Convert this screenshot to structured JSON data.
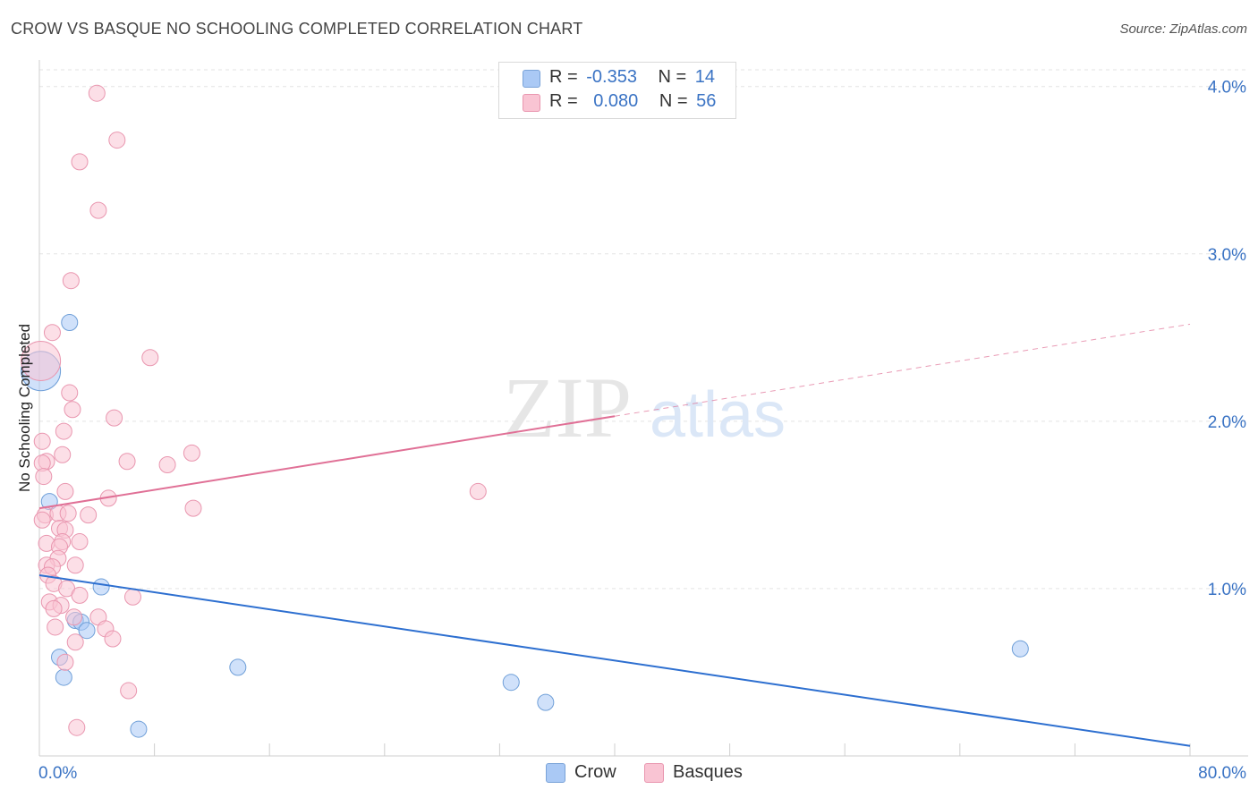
{
  "title": "CROW VS BASQUE NO SCHOOLING COMPLETED CORRELATION CHART",
  "source": "Source: ZipAtlas.com",
  "watermark": {
    "zip": "ZIP",
    "atlas": "atlas"
  },
  "legend": {
    "rows": [
      {
        "r_label": "R =",
        "r_value": "-0.353",
        "n_label": "N =",
        "n_value": "14",
        "color": "#aac9f5",
        "border": "#7aa3d8"
      },
      {
        "r_label": "R =",
        "r_value": "0.080",
        "n_label": "N =",
        "n_value": "56",
        "color": "#f9c4d3",
        "border": "#e996af"
      }
    ]
  },
  "bottom_legend": {
    "crow": "Crow",
    "basques": "Basques"
  },
  "chart_data": {
    "type": "scatter",
    "title": "CROW VS BASQUE NO SCHOOLING COMPLETED CORRELATION CHART",
    "xlabel": "",
    "ylabel": "No Schooling Completed",
    "xlim": [
      0,
      80
    ],
    "ylim": [
      0,
      4.1
    ],
    "x_tick_labels": {
      "min": "0.0%",
      "max": "80.0%"
    },
    "y_ticks": [
      1,
      2,
      3,
      4
    ],
    "y_tick_labels": [
      "1.0%",
      "2.0%",
      "3.0%",
      "4.0%"
    ],
    "grid": true,
    "series": [
      {
        "name": "Crow",
        "color": "#aac9f5",
        "stroke": "#6f9fd8",
        "line_color": "#2d6fd0",
        "trend": {
          "x0": 0,
          "y0": 1.08,
          "x1": 80,
          "y1": 0.06,
          "dashed_from": null
        },
        "points": [
          {
            "x": 0.1,
            "y": 2.3,
            "big": true
          },
          {
            "x": 2.1,
            "y": 2.59
          },
          {
            "x": 0.7,
            "y": 1.52
          },
          {
            "x": 4.3,
            "y": 1.01
          },
          {
            "x": 2.5,
            "y": 0.81
          },
          {
            "x": 2.9,
            "y": 0.8
          },
          {
            "x": 3.3,
            "y": 0.75
          },
          {
            "x": 1.4,
            "y": 0.59
          },
          {
            "x": 1.7,
            "y": 0.47
          },
          {
            "x": 13.8,
            "y": 0.53
          },
          {
            "x": 32.8,
            "y": 0.44
          },
          {
            "x": 35.2,
            "y": 0.32
          },
          {
            "x": 68.2,
            "y": 0.64
          },
          {
            "x": 6.9,
            "y": 0.16
          }
        ]
      },
      {
        "name": "Basques",
        "color": "#f9c4d3",
        "stroke": "#e996af",
        "line_color": "#e07096",
        "trend": {
          "x0": 0,
          "y0": 1.48,
          "x1": 80,
          "y1": 2.58,
          "dashed_from": 40
        },
        "points": [
          {
            "x": 0.1,
            "y": 2.36,
            "big": true
          },
          {
            "x": 4.0,
            "y": 3.96
          },
          {
            "x": 5.4,
            "y": 3.68
          },
          {
            "x": 2.8,
            "y": 3.55
          },
          {
            "x": 4.1,
            "y": 3.26
          },
          {
            "x": 2.2,
            "y": 2.84
          },
          {
            "x": 0.9,
            "y": 2.53
          },
          {
            "x": 7.7,
            "y": 2.38
          },
          {
            "x": 2.1,
            "y": 2.17
          },
          {
            "x": 2.3,
            "y": 2.07
          },
          {
            "x": 5.2,
            "y": 2.02
          },
          {
            "x": 1.7,
            "y": 1.94
          },
          {
            "x": 0.2,
            "y": 1.88
          },
          {
            "x": 1.6,
            "y": 1.8
          },
          {
            "x": 10.6,
            "y": 1.81
          },
          {
            "x": 0.5,
            "y": 1.76
          },
          {
            "x": 0.2,
            "y": 1.75
          },
          {
            "x": 6.1,
            "y": 1.76
          },
          {
            "x": 8.9,
            "y": 1.74
          },
          {
            "x": 0.3,
            "y": 1.67
          },
          {
            "x": 1.8,
            "y": 1.58
          },
          {
            "x": 30.5,
            "y": 1.58
          },
          {
            "x": 4.8,
            "y": 1.54
          },
          {
            "x": 10.7,
            "y": 1.48
          },
          {
            "x": 0.4,
            "y": 1.44
          },
          {
            "x": 0.2,
            "y": 1.41
          },
          {
            "x": 1.3,
            "y": 1.45
          },
          {
            "x": 2.0,
            "y": 1.45
          },
          {
            "x": 3.4,
            "y": 1.44
          },
          {
            "x": 1.4,
            "y": 1.36
          },
          {
            "x": 1.8,
            "y": 1.35
          },
          {
            "x": 0.5,
            "y": 1.27
          },
          {
            "x": 1.6,
            "y": 1.28
          },
          {
            "x": 2.8,
            "y": 1.28
          },
          {
            "x": 1.4,
            "y": 1.25
          },
          {
            "x": 1.3,
            "y": 1.18
          },
          {
            "x": 0.5,
            "y": 1.14
          },
          {
            "x": 0.9,
            "y": 1.13
          },
          {
            "x": 2.5,
            "y": 1.14
          },
          {
            "x": 0.6,
            "y": 1.08
          },
          {
            "x": 1.0,
            "y": 1.03
          },
          {
            "x": 1.9,
            "y": 1.0
          },
          {
            "x": 2.8,
            "y": 0.96
          },
          {
            "x": 6.5,
            "y": 0.95
          },
          {
            "x": 0.7,
            "y": 0.92
          },
          {
            "x": 1.5,
            "y": 0.9
          },
          {
            "x": 1.0,
            "y": 0.88
          },
          {
            "x": 2.4,
            "y": 0.83
          },
          {
            "x": 4.1,
            "y": 0.83
          },
          {
            "x": 1.1,
            "y": 0.77
          },
          {
            "x": 4.6,
            "y": 0.76
          },
          {
            "x": 5.1,
            "y": 0.7
          },
          {
            "x": 2.5,
            "y": 0.68
          },
          {
            "x": 1.8,
            "y": 0.56
          },
          {
            "x": 6.2,
            "y": 0.39
          },
          {
            "x": 2.6,
            "y": 0.17
          }
        ]
      }
    ]
  }
}
